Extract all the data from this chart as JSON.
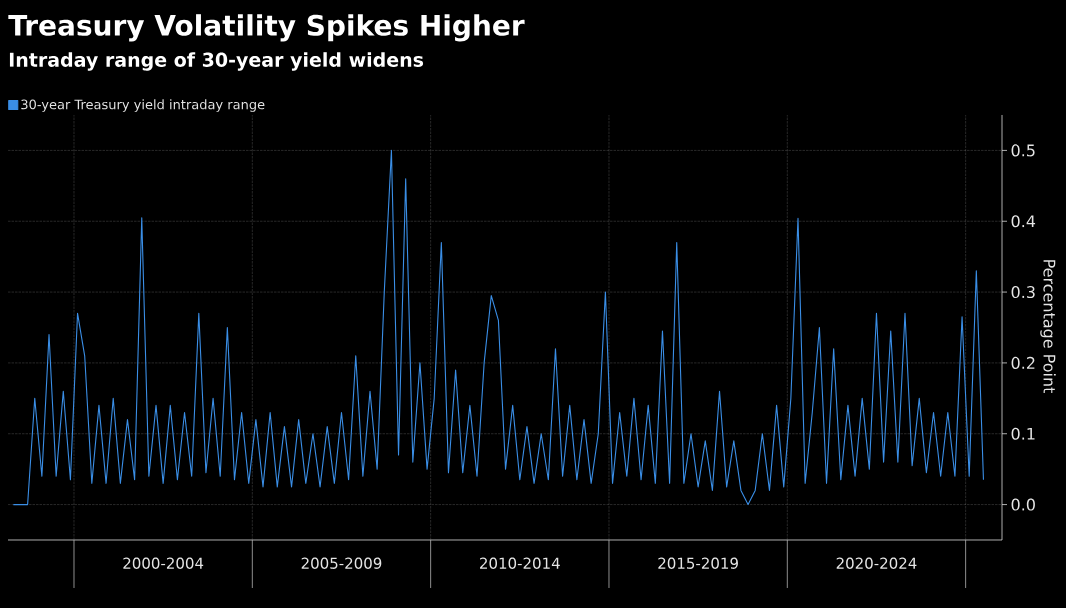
{
  "chart_data": {
    "type": "line",
    "title": "Treasury Volatility Spikes Higher",
    "subtitle": "Intraday range of 30-year yield widens",
    "ylabel": "Percentage Point",
    "categories": [
      null,
      null,
      null,
      null,
      null,
      null,
      null,
      null,
      null,
      null,
      null,
      null,
      null,
      null,
      null,
      null,
      null,
      null,
      null,
      null,
      null,
      "2000-2004",
      null,
      null,
      null,
      null,
      null,
      null,
      null,
      null,
      null,
      null,
      null,
      null,
      null,
      null,
      null,
      null,
      null,
      null,
      null,
      null,
      null,
      null,
      null,
      null,
      "2005-2009",
      null,
      null,
      null,
      null,
      null,
      null,
      null,
      null,
      null,
      null,
      null,
      null,
      null,
      null,
      null,
      null,
      null,
      null,
      null,
      null,
      null,
      null,
      null,
      null,
      "2010-2014",
      null,
      null,
      null,
      null,
      null,
      null,
      null,
      null,
      null,
      null,
      null,
      null,
      null,
      null,
      null,
      null,
      null,
      null,
      null,
      null,
      null,
      null,
      null,
      null,
      "2015-2019",
      null,
      null,
      null,
      null,
      null,
      null,
      null,
      null,
      null,
      null,
      null,
      null,
      null,
      null,
      null,
      null,
      null,
      null,
      null,
      null,
      null,
      null,
      null,
      null,
      "2020-2024",
      null,
      null,
      null,
      null,
      null,
      null,
      null,
      null,
      null,
      null,
      null,
      null,
      null,
      null,
      null
    ],
    "series": [
      {
        "name": "30-year Treasury yield intraday range",
        "color": "#3a8ee6",
        "values": [
          0,
          0,
          0,
          0.15,
          0.04,
          0.24,
          0.04,
          0.16,
          0.035,
          0.27,
          0.21,
          0.03,
          0.14,
          0.03,
          0.15,
          0.03,
          0.12,
          0.035,
          0.405,
          0.04,
          0.14,
          0.03,
          0.14,
          0.035,
          0.13,
          0.04,
          0.27,
          0.045,
          0.15,
          0.04,
          0.25,
          0.035,
          0.13,
          0.03,
          0.12,
          0.025,
          0.13,
          0.025,
          0.11,
          0.025,
          0.12,
          0.03,
          0.1,
          0.025,
          0.11,
          0.03,
          0.13,
          0.035,
          0.21,
          0.04,
          0.16,
          0.05,
          0.3,
          0.5,
          0.07,
          0.46,
          0.06,
          0.2,
          0.05,
          0.15,
          0.37,
          0.045,
          0.19,
          0.045,
          0.14,
          0.04,
          0.2,
          0.295,
          0.26,
          0.05,
          0.14,
          0.035,
          0.11,
          0.03,
          0.1,
          0.035,
          0.22,
          0.04,
          0.14,
          0.035,
          0.12,
          0.03,
          0.1,
          0.3,
          0.03,
          0.13,
          0.04,
          0.15,
          0.035,
          0.14,
          0.03,
          0.245,
          0.03,
          0.37,
          0.03,
          0.1,
          0.025,
          0.09,
          0.02,
          0.16,
          0.025,
          0.09,
          0.02,
          0.0,
          0.02,
          0.1,
          0.02,
          0.14,
          0.025,
          0.15,
          0.404,
          0.03,
          0.13,
          0.25,
          0.03,
          0.22,
          0.035,
          0.14,
          0.04,
          0.15,
          0.05,
          0.27,
          0.06,
          0.245,
          0.06,
          0.27,
          0.055,
          0.15,
          0.045,
          0.13,
          0.04,
          0.13,
          0.04,
          0.265,
          0.04,
          0.33,
          0.035
        ]
      }
    ],
    "ylim": [
      -0.05,
      0.55
    ],
    "yticks": [
      {
        "value": 0,
        "label": "0.0"
      },
      0.1,
      0.2,
      0.3,
      0.4,
      0.5
    ],
    "grid": true,
    "legend": "top left",
    "marker": "none",
    "line_style": "solid"
  }
}
